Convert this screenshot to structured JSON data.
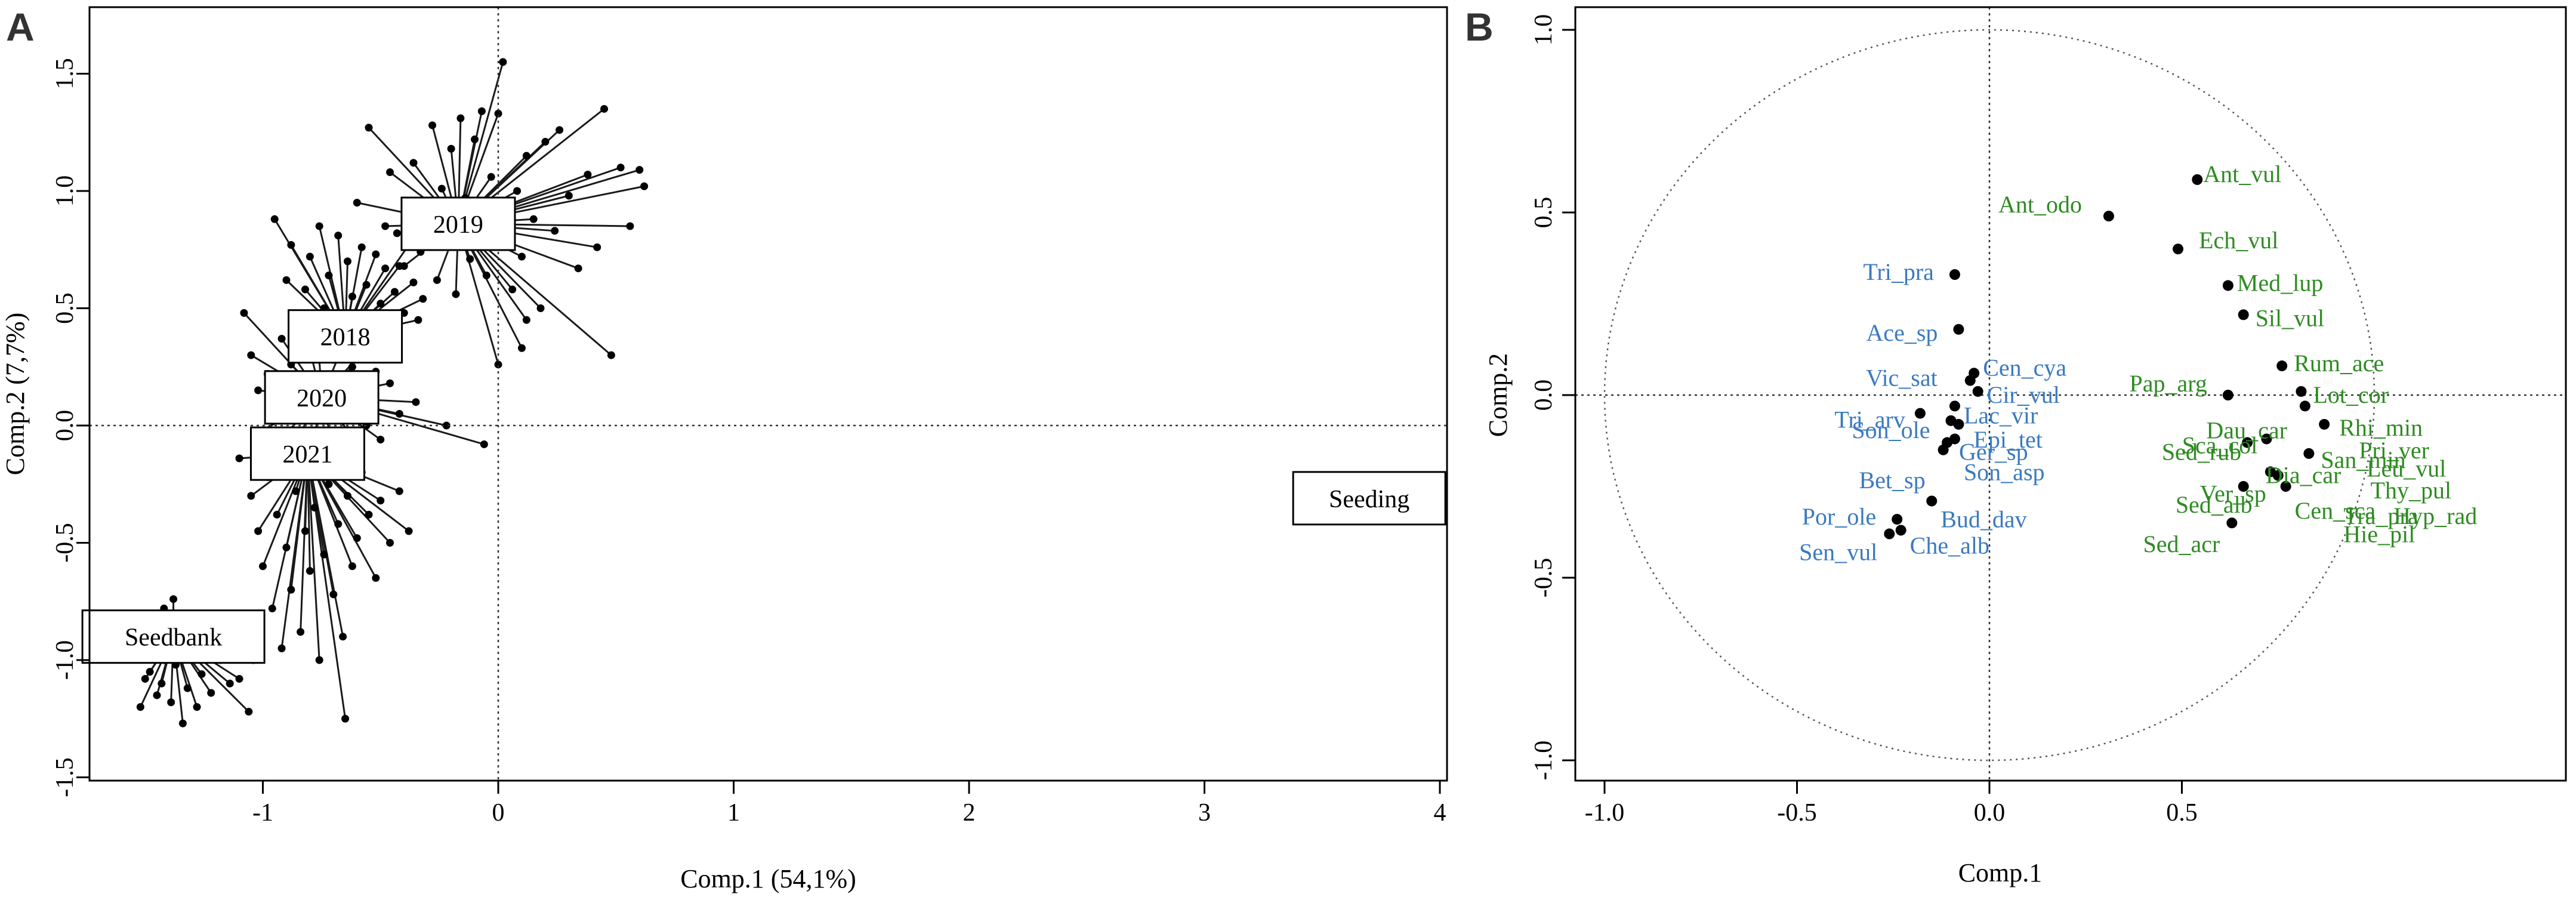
{
  "panel_a": {
    "letter": "A"
  },
  "panel_b": {
    "letter": "B"
  },
  "chart_data": [
    {
      "type": "scatter",
      "panel": "A",
      "xlabel": "Comp.1 (54,1%)",
      "ylabel": "Comp.2 (7,7%)",
      "xlim": [
        -1.0,
        4.0
      ],
      "ylim": [
        -1.5,
        1.5
      ],
      "xticks": [
        "-1",
        "0",
        "1",
        "2",
        "3",
        "4"
      ],
      "yticks": [
        "-1.5",
        "-1.0",
        "-0.5",
        "0.0",
        "0.5",
        "1.0",
        "1.5"
      ],
      "reference_lines": {
        "x": 0,
        "y": 0
      },
      "groups": [
        {
          "name": "2019",
          "centroid": [
            -0.17,
            0.86
          ],
          "points": [
            [
              -0.48,
              0.85
            ],
            [
              -0.46,
              1.08
            ],
            [
              -0.43,
              0.82
            ],
            [
              -0.4,
              0.68
            ],
            [
              -0.38,
              0.9
            ],
            [
              -0.36,
              1.12
            ],
            [
              -0.33,
              0.74
            ],
            [
              -0.3,
              0.94
            ],
            [
              -0.28,
              1.28
            ],
            [
              -0.26,
              0.62
            ],
            [
              -0.24,
              1.01
            ],
            [
              -0.22,
              0.79
            ],
            [
              -0.2,
              1.18
            ],
            [
              -0.18,
              0.56
            ],
            [
              -0.16,
              1.31
            ],
            [
              -0.14,
              0.97
            ],
            [
              -0.12,
              0.71
            ],
            [
              -0.1,
              1.22
            ],
            [
              -0.09,
              0.86
            ],
            [
              -0.07,
              1.34
            ],
            [
              -0.05,
              0.64
            ],
            [
              -0.03,
              1.06
            ],
            [
              -0.01,
              0.78
            ],
            [
              0.02,
              1.55
            ],
            [
              0.04,
              0.93
            ],
            [
              0.06,
              0.58
            ],
            [
              0.08,
              1.0
            ],
            [
              0.1,
              0.72
            ],
            [
              0.12,
              1.15
            ],
            [
              0.15,
              0.88
            ],
            [
              0.18,
              0.5
            ],
            [
              0.2,
              1.21
            ],
            [
              0.24,
              0.83
            ],
            [
              0.26,
              1.26
            ],
            [
              0.3,
              0.98
            ],
            [
              0.34,
              0.67
            ],
            [
              0.38,
              1.07
            ],
            [
              0.42,
              0.76
            ],
            [
              0.45,
              1.35
            ],
            [
              0.48,
              0.3
            ],
            [
              0.52,
              1.1
            ],
            [
              0.56,
              0.85
            ],
            [
              0.6,
              1.09
            ],
            [
              0.62,
              1.02
            ],
            [
              -0.55,
              1.27
            ],
            [
              -0.6,
              0.95
            ],
            [
              0.0,
              0.26
            ],
            [
              0.1,
              0.33
            ],
            [
              0.12,
              0.45
            ],
            [
              0.0,
              1.33
            ]
          ]
        },
        {
          "name": "2018",
          "centroid": [
            -0.65,
            0.38
          ],
          "points": [
            [
              -0.95,
              0.88
            ],
            [
              -0.9,
              0.62
            ],
            [
              -0.88,
              0.77
            ],
            [
              -0.85,
              0.42
            ],
            [
              -0.82,
              0.58
            ],
            [
              -0.8,
              0.72
            ],
            [
              -0.78,
              0.32
            ],
            [
              -0.76,
              0.85
            ],
            [
              -0.74,
              0.5
            ],
            [
              -0.72,
              0.64
            ],
            [
              -0.7,
              0.28
            ],
            [
              -0.68,
              0.81
            ],
            [
              -0.66,
              0.46
            ],
            [
              -0.64,
              0.7
            ],
            [
              -0.62,
              0.55
            ],
            [
              -0.6,
              0.39
            ],
            [
              -0.58,
              0.76
            ],
            [
              -0.56,
              0.6
            ],
            [
              -0.54,
              0.44
            ],
            [
              -0.52,
              0.73
            ],
            [
              -0.5,
              0.52
            ],
            [
              -0.48,
              0.67
            ],
            [
              -0.46,
              0.35
            ],
            [
              -0.44,
              0.57
            ],
            [
              -0.42,
              0.68
            ],
            [
              -0.4,
              0.48
            ],
            [
              -0.38,
              0.77
            ],
            [
              -0.36,
              0.61
            ],
            [
              -0.34,
              0.45
            ],
            [
              -0.32,
              0.54
            ]
          ]
        },
        {
          "name": "2020",
          "centroid": [
            -0.75,
            0.12
          ],
          "points": [
            [
              -1.08,
              0.48
            ],
            [
              -1.05,
              0.3
            ],
            [
              -1.02,
              0.15
            ],
            [
              -1.0,
              -0.02
            ],
            [
              -0.98,
              0.22
            ],
            [
              -0.95,
              -0.08
            ],
            [
              -0.92,
              0.37
            ],
            [
              -0.9,
              0.05
            ],
            [
              -0.88,
              0.26
            ],
            [
              -0.86,
              -0.06
            ],
            [
              -0.84,
              0.18
            ],
            [
              -0.82,
              0.4
            ],
            [
              -0.8,
              0.1
            ],
            [
              -0.78,
              -0.04
            ],
            [
              -0.76,
              0.28
            ],
            [
              -0.74,
              0.03
            ],
            [
              -0.72,
              0.21
            ],
            [
              -0.7,
              -0.1
            ],
            [
              -0.68,
              0.14
            ],
            [
              -0.66,
              0.34
            ],
            [
              -0.64,
              -0.02
            ],
            [
              -0.62,
              0.25
            ],
            [
              -0.6,
              0.08
            ],
            [
              -0.58,
              0.31
            ],
            [
              -0.56,
              0.0
            ],
            [
              -0.54,
              0.12
            ],
            [
              -0.52,
              0.23
            ],
            [
              -0.5,
              -0.06
            ],
            [
              -0.46,
              0.18
            ],
            [
              -0.42,
              0.05
            ],
            [
              -0.35,
              0.1
            ],
            [
              -0.22,
              0.0
            ],
            [
              -0.06,
              -0.08
            ]
          ]
        },
        {
          "name": "2021",
          "centroid": [
            -0.81,
            -0.12
          ],
          "points": [
            [
              -1.1,
              -0.14
            ],
            [
              -1.05,
              -0.3
            ],
            [
              -1.02,
              -0.45
            ],
            [
              -1.0,
              -0.6
            ],
            [
              -0.98,
              -0.22
            ],
            [
              -0.96,
              -0.78
            ],
            [
              -0.94,
              -0.38
            ],
            [
              -0.92,
              -0.95
            ],
            [
              -0.9,
              -0.52
            ],
            [
              -0.88,
              -0.7
            ],
            [
              -0.86,
              -0.28
            ],
            [
              -0.84,
              -0.88
            ],
            [
              -0.82,
              -0.45
            ],
            [
              -0.8,
              -0.62
            ],
            [
              -0.78,
              -0.35
            ],
            [
              -0.76,
              -1.0
            ],
            [
              -0.74,
              -0.55
            ],
            [
              -0.72,
              -0.25
            ],
            [
              -0.7,
              -0.72
            ],
            [
              -0.68,
              -0.42
            ],
            [
              -0.66,
              -0.9
            ],
            [
              -0.64,
              -0.3
            ],
            [
              -0.62,
              -0.6
            ],
            [
              -0.6,
              -0.48
            ],
            [
              -0.58,
              -0.2
            ],
            [
              -0.55,
              -0.38
            ],
            [
              -0.52,
              -0.65
            ],
            [
              -0.5,
              -0.32
            ],
            [
              -0.46,
              -0.5
            ],
            [
              -0.42,
              -0.28
            ],
            [
              -0.38,
              -0.45
            ],
            [
              -0.65,
              -1.25
            ]
          ]
        },
        {
          "name": "Seedbank",
          "centroid": [
            -1.38,
            -0.9
          ],
          "points": [
            [
              -1.52,
              -1.2
            ],
            [
              -1.5,
              -1.08
            ],
            [
              -1.48,
              -1.05
            ],
            [
              -1.46,
              -0.96
            ],
            [
              -1.45,
              -1.15
            ],
            [
              -1.43,
              -1.1
            ],
            [
              -1.42,
              -1.0
            ],
            [
              -1.4,
              -0.92
            ],
            [
              -1.39,
              -1.18
            ],
            [
              -1.37,
              -1.02
            ],
            [
              -1.36,
              -0.88
            ],
            [
              -1.34,
              -1.27
            ],
            [
              -1.32,
              -1.12
            ],
            [
              -1.3,
              -0.98
            ],
            [
              -1.28,
              -1.2
            ],
            [
              -1.26,
              -1.06
            ],
            [
              -1.24,
              -0.94
            ],
            [
              -1.22,
              -1.14
            ],
            [
              -1.18,
              -1.0
            ],
            [
              -1.14,
              -1.1
            ],
            [
              -1.1,
              -1.08
            ],
            [
              -1.06,
              -1.22
            ],
            [
              -1.04,
              -1.0
            ],
            [
              -1.42,
              -0.78
            ],
            [
              -1.38,
              -0.74
            ],
            [
              -1.35,
              -0.82
            ],
            [
              -1.3,
              -0.86
            ],
            [
              -1.28,
              -0.95
            ],
            [
              -1.26,
              -0.9
            ],
            [
              -1.33,
              -0.97
            ]
          ]
        },
        {
          "name": "Seeding",
          "centroid": [
            3.7,
            -0.31
          ],
          "points": []
        }
      ]
    },
    {
      "type": "scatter",
      "panel": "B",
      "xlabel": "Comp.1",
      "ylabel": "Comp.2",
      "xlim": [
        -1.0,
        1.0
      ],
      "ylim": [
        -1.0,
        1.0
      ],
      "xticks": [
        "-1.0",
        "-0.5",
        "0.0",
        "0.5"
      ],
      "yticks": [
        "-1.0",
        "-0.5",
        "0.0",
        "0.5",
        "1.0"
      ],
      "reference_lines": {
        "x": 0,
        "y": 0
      },
      "correlation_circle": true,
      "colors": {
        "left_species": "#3a7abf",
        "right_species": "#2e8b22",
        "points": "#000000"
      },
      "species": [
        {
          "name": "Ant_vul",
          "x": 0.54,
          "y": 0.59,
          "group": "right"
        },
        {
          "name": "Ant_odo",
          "x": 0.31,
          "y": 0.49,
          "group": "right"
        },
        {
          "name": "Ech_vul",
          "x": 0.49,
          "y": 0.4,
          "group": "right"
        },
        {
          "name": "Med_lup",
          "x": 0.62,
          "y": 0.3,
          "group": "right"
        },
        {
          "name": "Sil_vul",
          "x": 0.66,
          "y": 0.22,
          "group": "right"
        },
        {
          "name": "Rum_ace",
          "x": 0.76,
          "y": 0.08,
          "group": "right"
        },
        {
          "name": "Pap_arg",
          "x": 0.62,
          "y": 0.0,
          "group": "right"
        },
        {
          "name": "Lot_cor",
          "x": 0.81,
          "y": 0.01,
          "group": "right"
        },
        {
          "name": "Dau_car",
          "x": 0.82,
          "y": -0.03,
          "group": "right"
        },
        {
          "name": "Rhi_min",
          "x": 0.87,
          "y": -0.08,
          "group": "right"
        },
        {
          "name": "Sca_col",
          "x": 0.72,
          "y": -0.12,
          "group": "right"
        },
        {
          "name": "San_min",
          "x": 0.83,
          "y": -0.16,
          "group": "right"
        },
        {
          "name": "Sed_rub",
          "x": 0.67,
          "y": -0.13,
          "group": "right"
        },
        {
          "name": "Dia_car",
          "x": 0.73,
          "y": -0.21,
          "group": "right"
        },
        {
          "name": "Ver_sp",
          "x": 0.75,
          "y": -0.22,
          "group": "right"
        },
        {
          "name": "Sed_alb",
          "x": 0.66,
          "y": -0.25,
          "group": "right"
        },
        {
          "name": "Cen_sca",
          "x": 0.77,
          "y": -0.25,
          "group": "right"
        },
        {
          "name": "Sed_acr",
          "x": 0.63,
          "y": -0.35,
          "group": "right"
        },
        {
          "name": "Pri_ver",
          "x": 0.96,
          "y": -0.15,
          "group": "right"
        },
        {
          "name": "Leu_vul",
          "x": 0.98,
          "y": -0.2,
          "group": "right"
        },
        {
          "name": "Thy_pul",
          "x": 0.99,
          "y": -0.26,
          "group": "right"
        },
        {
          "name": "Tra_pra",
          "x": 0.92,
          "y": -0.33,
          "group": "right"
        },
        {
          "name": "Hyp_rad",
          "x": 1.05,
          "y": -0.33,
          "group": "right"
        },
        {
          "name": "Hie_pil",
          "x": 0.92,
          "y": -0.38,
          "group": "right"
        },
        {
          "name": "Tri_pra",
          "x": -0.09,
          "y": 0.33,
          "group": "left"
        },
        {
          "name": "Ace_sp",
          "x": -0.08,
          "y": 0.18,
          "group": "left"
        },
        {
          "name": "Cen_cya",
          "x": -0.04,
          "y": 0.06,
          "group": "left"
        },
        {
          "name": "Vic_sat",
          "x": -0.05,
          "y": 0.04,
          "group": "left"
        },
        {
          "name": "Cir_vul",
          "x": -0.03,
          "y": 0.01,
          "group": "left"
        },
        {
          "name": "Tri_arv",
          "x": -0.18,
          "y": -0.05,
          "group": "left"
        },
        {
          "name": "Lac_vir",
          "x": -0.09,
          "y": -0.03,
          "group": "left"
        },
        {
          "name": "Son_ole",
          "x": -0.1,
          "y": -0.07,
          "group": "left"
        },
        {
          "name": "Epi_tet",
          "x": -0.08,
          "y": -0.08,
          "group": "left"
        },
        {
          "name": "Ger_sp",
          "x": -0.11,
          "y": -0.13,
          "group": "left"
        },
        {
          "name": "Bet_sp",
          "x": -0.12,
          "y": -0.15,
          "group": "left"
        },
        {
          "name": "Son_asp",
          "x": -0.09,
          "y": -0.12,
          "group": "left"
        },
        {
          "name": "Bud_dav",
          "x": -0.15,
          "y": -0.29,
          "group": "left"
        },
        {
          "name": "Por_ole",
          "x": -0.24,
          "y": -0.34,
          "group": "left"
        },
        {
          "name": "Sen_vul",
          "x": -0.26,
          "y": -0.38,
          "group": "left"
        },
        {
          "name": "Che_alb",
          "x": -0.23,
          "y": -0.37,
          "group": "left"
        }
      ]
    }
  ]
}
